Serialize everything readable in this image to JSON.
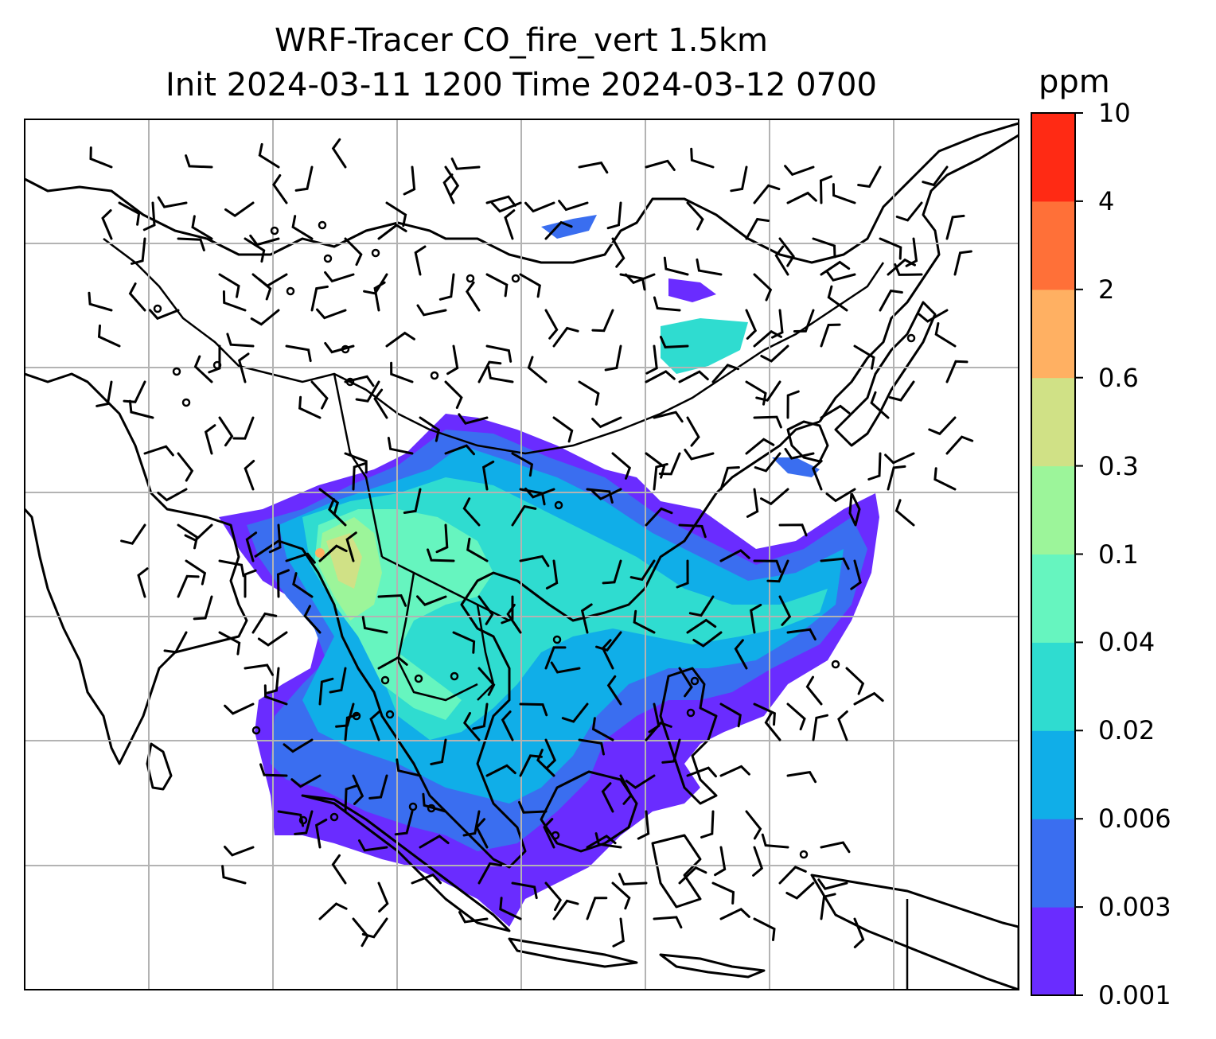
{
  "title": {
    "line1": "WRF-Tracer CO_fire_vert 1.5km",
    "line2": "Init 2024-03-11 1200 Time 2024-03-12 0700"
  },
  "colorbar": {
    "unit": "ppm",
    "levels": [
      "0.001",
      "0.003",
      "0.006",
      "0.02",
      "0.04",
      "0.1",
      "0.3",
      "0.6",
      "2",
      "4",
      "10"
    ],
    "colors": [
      "#6a2cff",
      "#3a6ef0",
      "#10aee8",
      "#2fdcd0",
      "#66f5bf",
      "#9cf59a",
      "#d0e186",
      "#ffb062",
      "#ff7038",
      "#ff2a14"
    ]
  },
  "map": {
    "region": "Southeast Asia / East Asia",
    "layers": [
      "coastlines",
      "country borders",
      "gridlines",
      "CO fire tracer plume (filled contours)",
      "wind barbs",
      "calm-wind circles"
    ]
  }
}
